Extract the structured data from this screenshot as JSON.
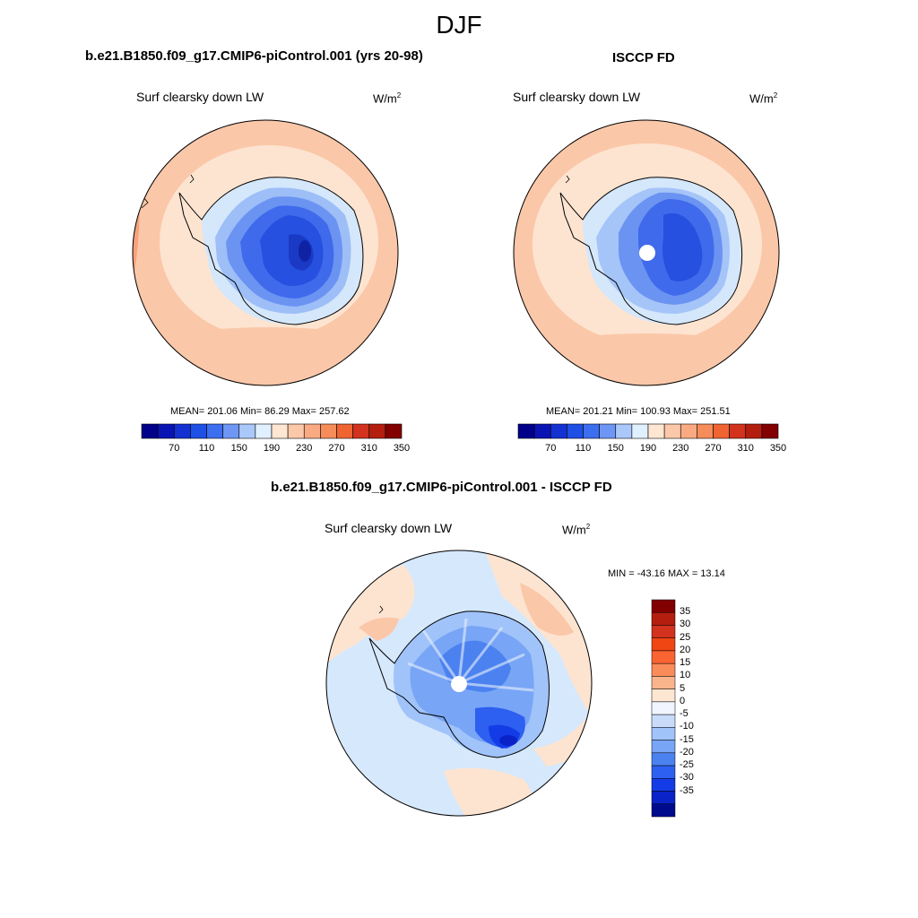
{
  "season": "DJF",
  "units_base": "W/m",
  "units_exp": "2",
  "panels": {
    "model": {
      "case_title": "b.e21.B1850.f09_g17.CMIP6-piControl.001 (yrs 20-98)",
      "var_label": "Surf clearsky down LW",
      "stats": "MEAN= 201.06  Min=  86.29  Max= 257.62"
    },
    "obs": {
      "case_title": "ISCCP FD",
      "var_label": "Surf clearsky down LW",
      "stats": "MEAN= 201.21  Min= 100.93  Max= 251.51"
    },
    "diff": {
      "case_title": "b.e21.B1850.f09_g17.CMIP6-piControl.001 - ISCCP FD",
      "var_label": "Surf clearsky down LW",
      "stats": "MIN = -43.16 MAX =  13.14"
    }
  },
  "abs_colorbar": {
    "colors": [
      "#00008b",
      "#0a14b4",
      "#1432d2",
      "#1e50e6",
      "#3c6ef0",
      "#6e96f5",
      "#aac8fa",
      "#e1f0ff",
      "#ffe6d2",
      "#fcc8aa",
      "#faaa82",
      "#f58c5a",
      "#f06432",
      "#d2321e",
      "#b41e0f",
      "#820000"
    ],
    "tick_labels": [
      "70",
      "110",
      "150",
      "190",
      "230",
      "270",
      "310",
      "350"
    ]
  },
  "diff_colorbar": {
    "colors": [
      "#820000",
      "#b41e0f",
      "#d2321e",
      "#f04614",
      "#fa6432",
      "#fa8c5a",
      "#fab48c",
      "#fde6d2",
      "#f0f5ff",
      "#c8dcfa",
      "#a0c3fa",
      "#78a5f5",
      "#4b82f0",
      "#2d5ff0",
      "#143ce6",
      "#0a23c8",
      "#000a8c"
    ],
    "tick_labels": [
      "35",
      "30",
      "25",
      "20",
      "15",
      "10",
      "5",
      "0",
      "-5",
      "-10",
      "-15",
      "-20",
      "-25",
      "-30",
      "-35"
    ]
  }
}
